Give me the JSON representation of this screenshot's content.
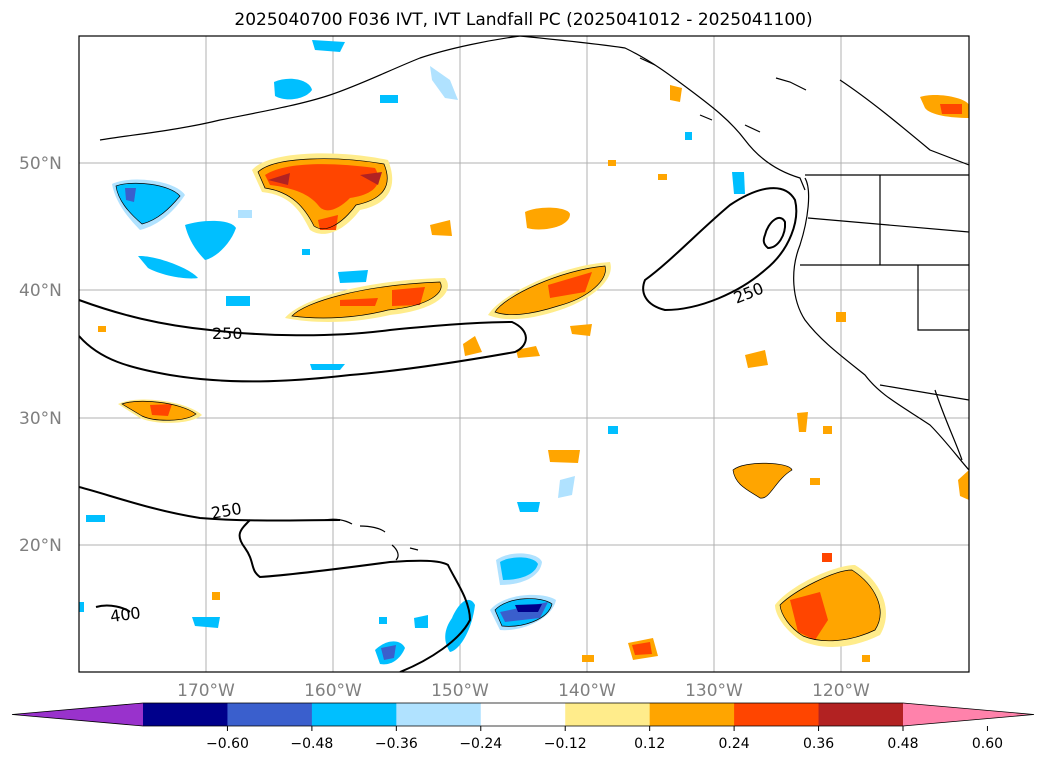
{
  "title": "2025040700 F036 IVT, IVT Landfall PC (2025041012 - 2025041100)",
  "lat_labels": [
    "50°N",
    "40°N",
    "30°N",
    "20°N"
  ],
  "lon_labels": [
    "170°W",
    "160°W",
    "150°W",
    "140°W",
    "130°W",
    "120°W"
  ],
  "contour_labels": [
    "250",
    "250",
    "250",
    "400"
  ],
  "colorbar": {
    "ticks": [
      "−0.60",
      "−0.48",
      "−0.36",
      "−0.24",
      "−0.12",
      "0.12",
      "0.24",
      "0.36",
      "0.48",
      "0.60"
    ],
    "colors": [
      "#9932cc",
      "#00008b",
      "#3a5fcd",
      "#00bfff",
      "#b0e2ff",
      "#ffffff",
      "#ffec8b",
      "#ffa500",
      "#ff4500",
      "#b22222",
      "#ff82ab"
    ]
  }
}
